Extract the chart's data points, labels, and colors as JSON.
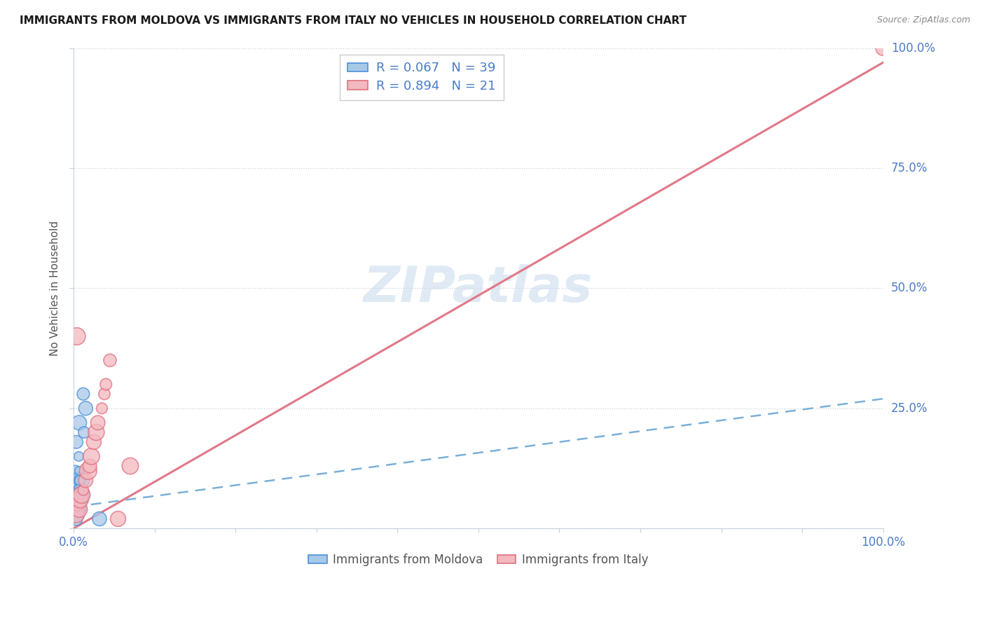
{
  "title": "IMMIGRANTS FROM MOLDOVA VS IMMIGRANTS FROM ITALY NO VEHICLES IN HOUSEHOLD CORRELATION CHART",
  "source": "Source: ZipAtlas.com",
  "ylabel": "No Vehicles in Household",
  "xlim": [
    0,
    100
  ],
  "ylim": [
    0,
    100
  ],
  "moldova_color": "#a8c8e8",
  "moldova_edge": "#4a90d9",
  "italy_color": "#f4b8c0",
  "italy_edge": "#e07080",
  "moldova_R": 0.067,
  "moldova_N": 39,
  "italy_R": 0.894,
  "italy_N": 21,
  "trend_blue_color": "#7ab0d8",
  "trend_pink_color": "#e07888",
  "legend_text_color": "#4a7cc7",
  "axis_label_color": "#4a7cc7",
  "watermark_color": "#ccddef",
  "moldova_x": [
    0.15,
    0.2,
    0.25,
    0.3,
    0.35,
    0.4,
    0.45,
    0.5,
    0.55,
    0.6,
    0.65,
    0.7,
    0.8,
    0.9,
    1.0,
    1.1,
    1.2,
    1.3,
    1.5,
    0.2,
    0.3,
    0.4,
    0.5,
    0.6,
    0.7,
    0.8,
    0.9,
    1.0,
    0.3,
    0.4,
    0.5,
    0.2,
    0.6,
    0.3,
    0.4,
    0.5,
    0.7,
    0.3,
    3.2
  ],
  "moldova_y": [
    5,
    8,
    12,
    4,
    18,
    6,
    10,
    3,
    7,
    5,
    15,
    22,
    8,
    4,
    10,
    6,
    28,
    20,
    25,
    3,
    5,
    4,
    6,
    3,
    8,
    10,
    5,
    7,
    5,
    4,
    3,
    6,
    4,
    3,
    5,
    7,
    12,
    2,
    2
  ],
  "italy_x": [
    0.3,
    0.5,
    0.7,
    0.8,
    1.0,
    1.2,
    1.5,
    1.8,
    2.0,
    2.2,
    2.5,
    2.8,
    3.0,
    3.5,
    3.8,
    4.0,
    4.5,
    0.4,
    5.5,
    7.0,
    100
  ],
  "italy_y": [
    3,
    5,
    4,
    6,
    7,
    8,
    10,
    12,
    13,
    15,
    18,
    20,
    22,
    25,
    28,
    30,
    35,
    40,
    2,
    13,
    100
  ],
  "moldova_trend_x0": 0,
  "moldova_trend_y0": 4.5,
  "moldova_trend_x1": 100,
  "moldova_trend_y1": 27,
  "italy_trend_x0": 0,
  "italy_trend_y0": 0,
  "italy_trend_x1": 100,
  "italy_trend_y1": 97
}
